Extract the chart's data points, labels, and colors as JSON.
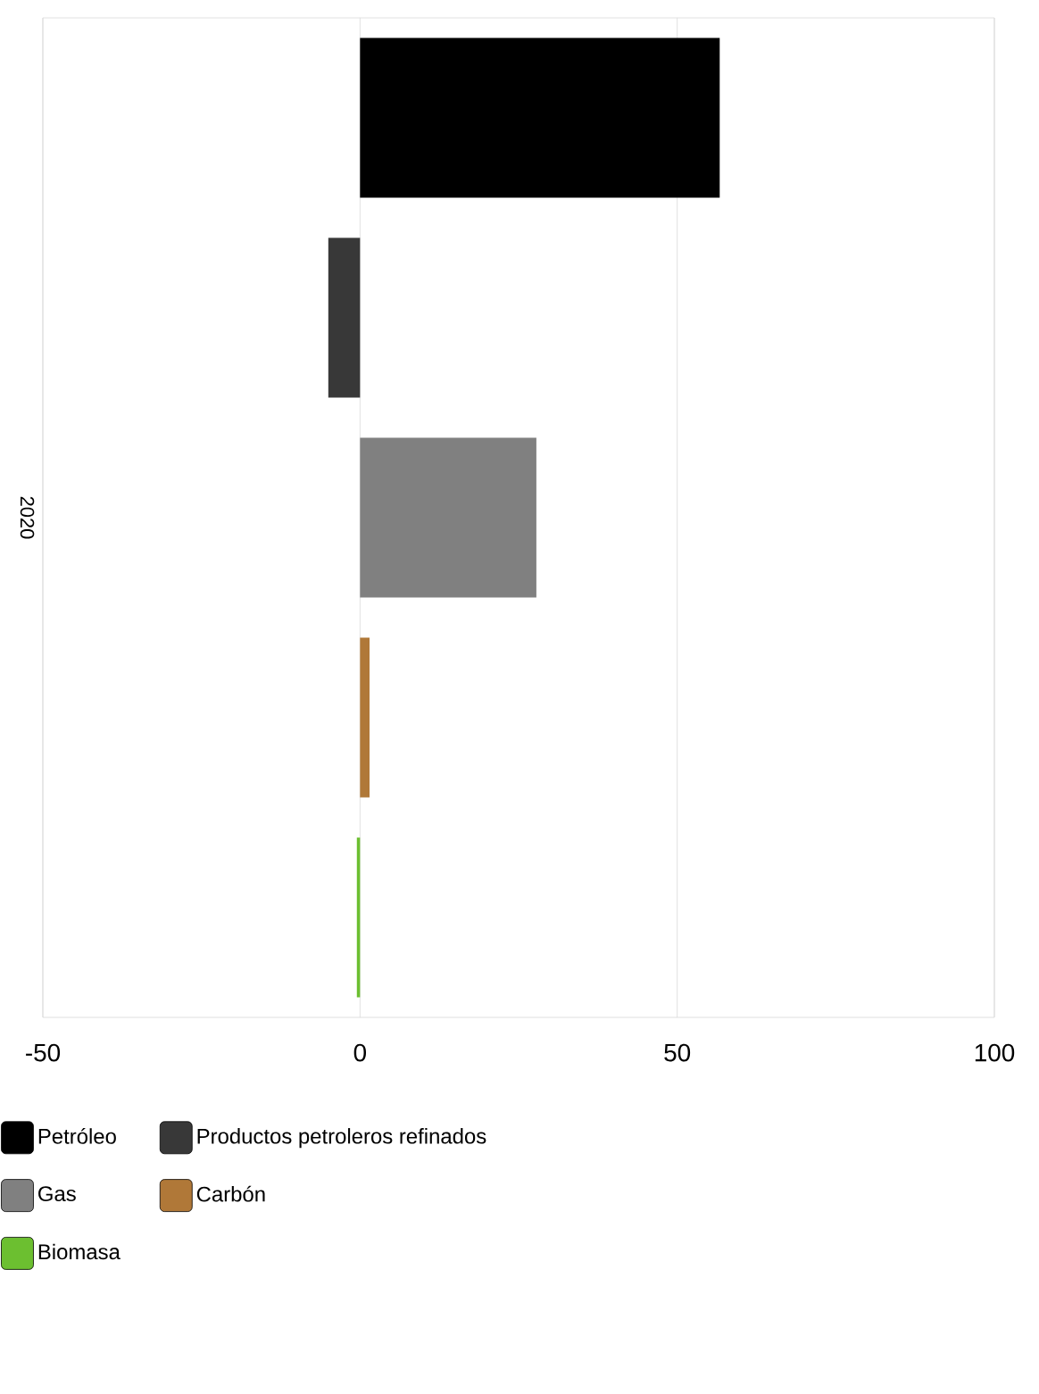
{
  "chart_data": {
    "type": "bar",
    "orientation": "horizontal",
    "categories": [
      "2020"
    ],
    "series": [
      {
        "name": "Petróleo",
        "color": "#000000",
        "values": [
          56.7
        ]
      },
      {
        "name": "Productos petroleros refinados",
        "color": "#383838",
        "values": [
          -5
        ]
      },
      {
        "name": "Gas",
        "color": "#808080",
        "values": [
          27.8
        ]
      },
      {
        "name": "Carbón",
        "color": "#b07838",
        "values": [
          1.5
        ]
      },
      {
        "name": "Biomasa",
        "color": "#6cbf30",
        "values": [
          -0.5
        ]
      }
    ],
    "xlim": [
      -50,
      100
    ],
    "xticks": [
      -50,
      0,
      50,
      100
    ],
    "grid": "x",
    "legend": "bottom"
  }
}
